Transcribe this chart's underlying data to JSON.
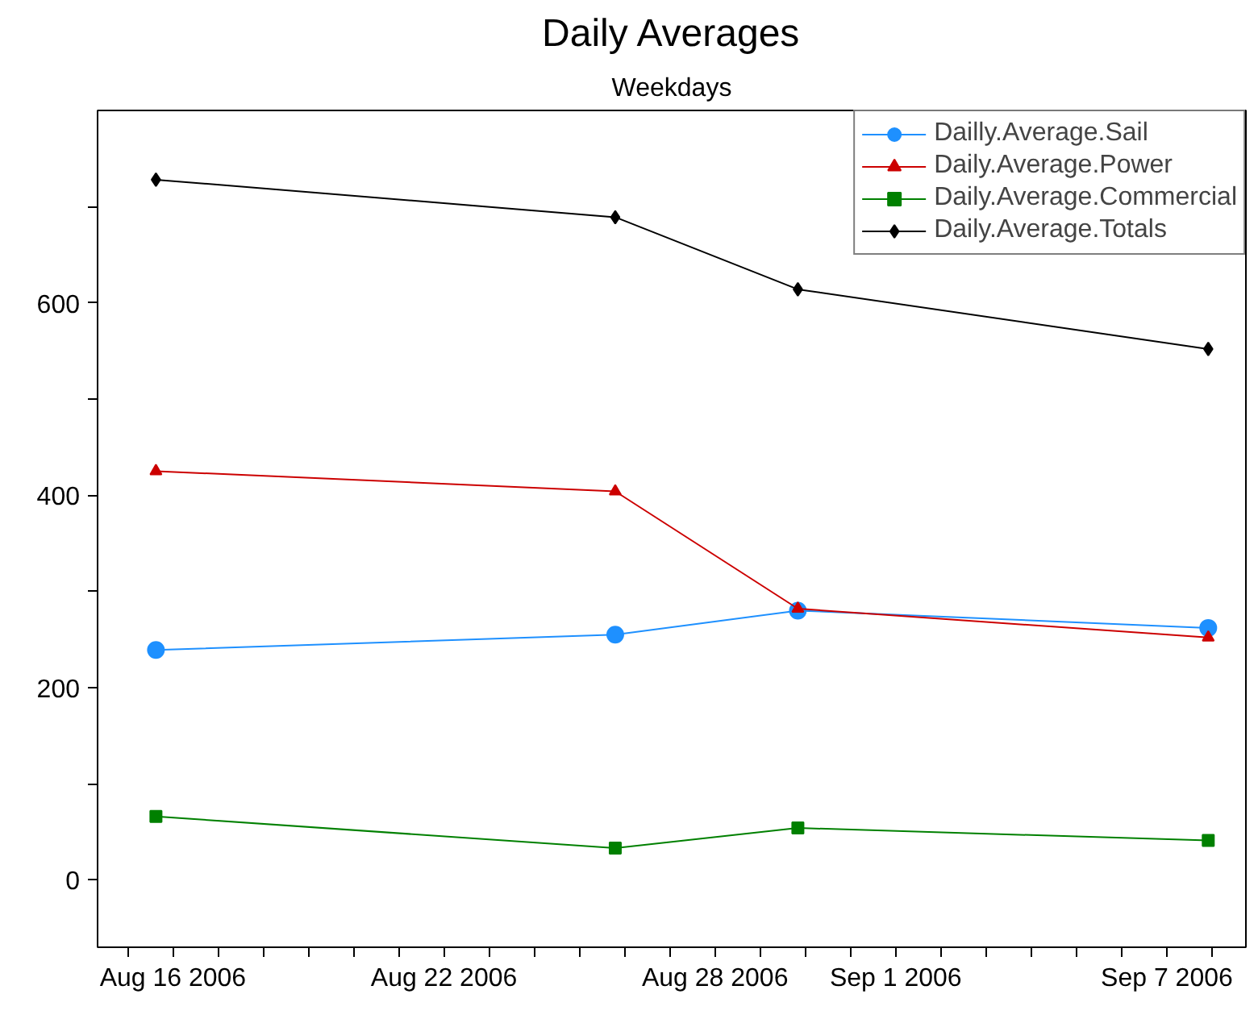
{
  "chart_data": {
    "type": "line",
    "title": "Daily Averages",
    "subtitle": "Weekdays",
    "x": [
      "2006-08-15T15:00",
      "2006-08-25T19:00",
      "2006-08-29T20:00",
      "2006-09-07T22:00"
    ],
    "series": [
      {
        "name": "Dailly.Average.Sail",
        "color": "#1e90ff",
        "marker": "circle",
        "values": [
          239,
          255,
          280,
          262
        ]
      },
      {
        "name": "Daily.Average.Power",
        "color": "#cc0000",
        "marker": "triangle",
        "values": [
          425,
          404,
          282,
          252
        ]
      },
      {
        "name": "Daily.Average.Commercial",
        "color": "#008000",
        "marker": "square",
        "values": [
          66,
          33,
          54,
          41
        ]
      },
      {
        "name": "Daily.Average.Totals",
        "color": "#000000",
        "marker": "diamond",
        "values": [
          728,
          689,
          614,
          552
        ]
      }
    ],
    "xlim": [
      "2006-08-14T08:00",
      "2006-09-08T18:00"
    ],
    "xticks": [
      {
        "value": "2006-08-15",
        "label": null
      },
      {
        "value": "2006-08-16",
        "label": "Aug 16 2006"
      },
      {
        "value": "2006-08-17",
        "label": null
      },
      {
        "value": "2006-08-18",
        "label": null
      },
      {
        "value": "2006-08-19",
        "label": null
      },
      {
        "value": "2006-08-20",
        "label": null
      },
      {
        "value": "2006-08-21",
        "label": null
      },
      {
        "value": "2006-08-22",
        "label": "Aug 22 2006"
      },
      {
        "value": "2006-08-23",
        "label": null
      },
      {
        "value": "2006-08-24",
        "label": null
      },
      {
        "value": "2006-08-25",
        "label": null
      },
      {
        "value": "2006-08-26",
        "label": null
      },
      {
        "value": "2006-08-27",
        "label": null
      },
      {
        "value": "2006-08-28",
        "label": "Aug 28 2006"
      },
      {
        "value": "2006-08-29",
        "label": null
      },
      {
        "value": "2006-08-30",
        "label": null
      },
      {
        "value": "2006-08-31",
        "label": null
      },
      {
        "value": "2006-09-01",
        "label": "Sep 1 2006"
      },
      {
        "value": "2006-09-02",
        "label": null
      },
      {
        "value": "2006-09-03",
        "label": null
      },
      {
        "value": "2006-09-04",
        "label": null
      },
      {
        "value": "2006-09-05",
        "label": null
      },
      {
        "value": "2006-09-06",
        "label": null
      },
      {
        "value": "2006-09-07",
        "label": "Sep 7 2006"
      },
      {
        "value": "2006-09-08",
        "label": null
      }
    ],
    "ylim": [
      -70,
      800
    ],
    "yticks": [
      0,
      {
        "value": 100,
        "label": null
      },
      200,
      {
        "value": 300,
        "label": null
      },
      400,
      {
        "value": 500,
        "label": null
      },
      600,
      {
        "value": 700,
        "label": null
      }
    ],
    "grid": false,
    "legend": "top right",
    "line_style": "solid"
  }
}
